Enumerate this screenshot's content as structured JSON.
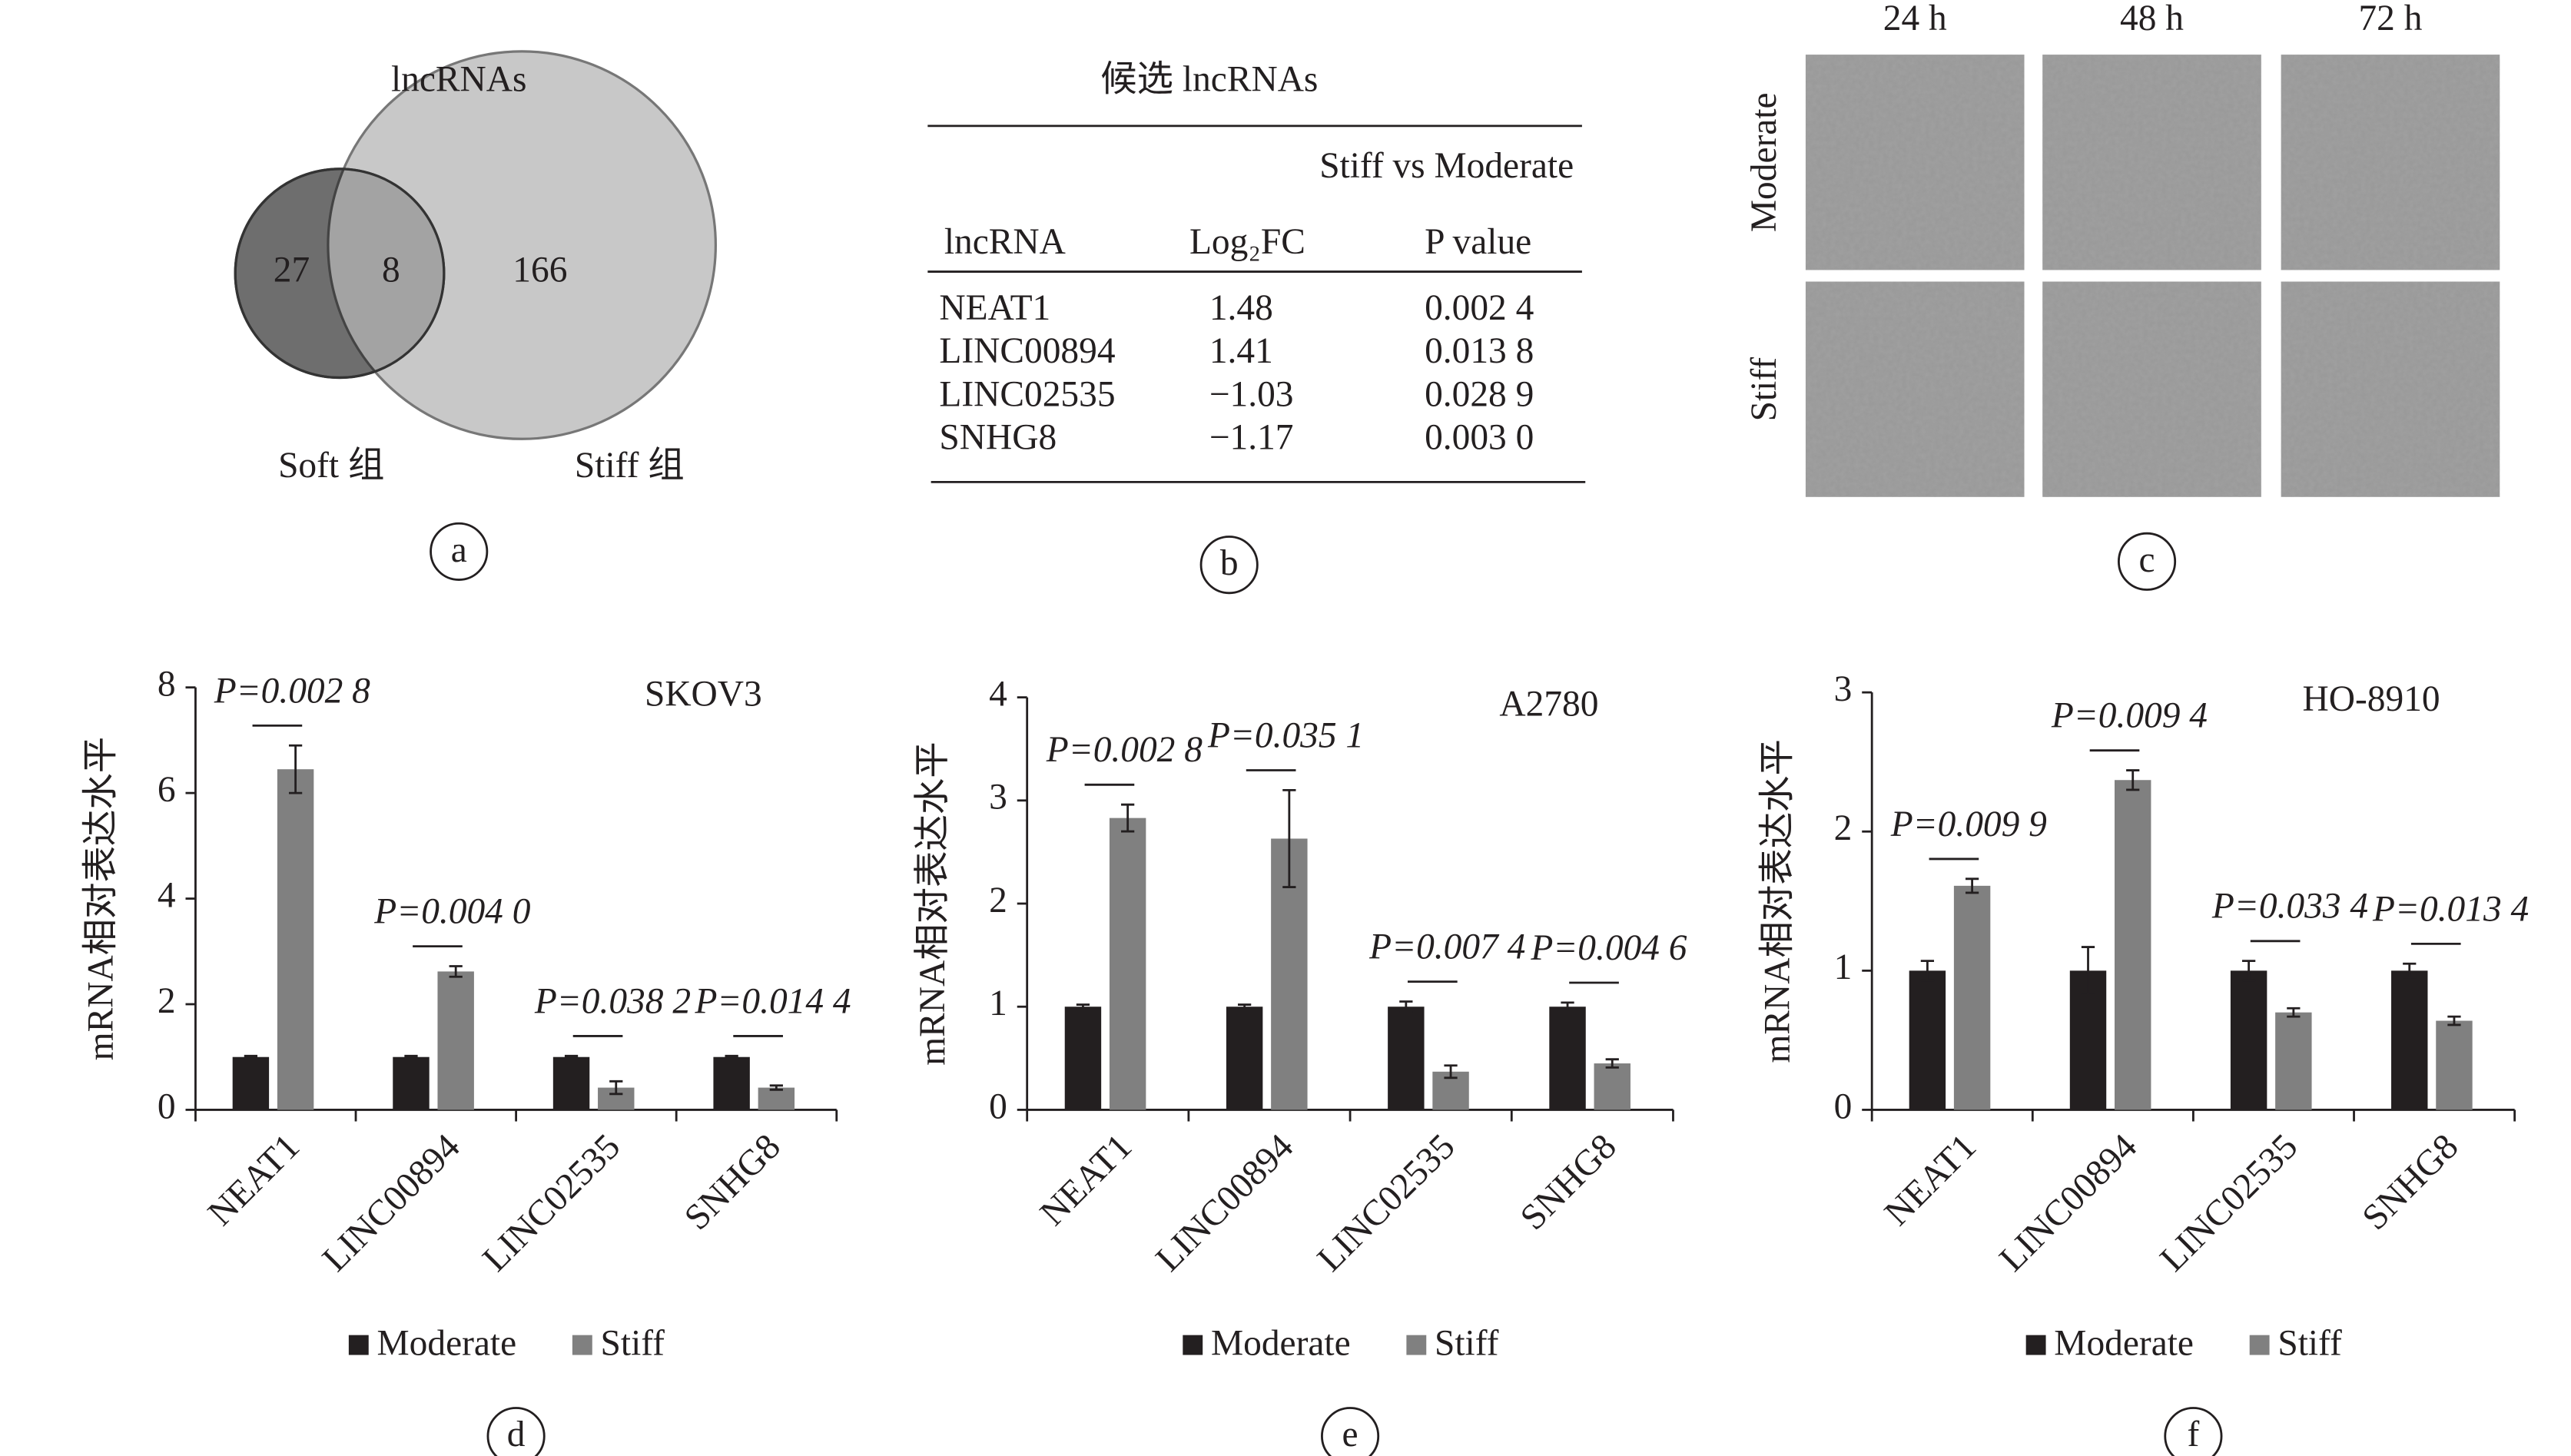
{
  "venn": {
    "title": "lncRNAs",
    "sets": [
      {
        "label": "Soft 组",
        "value": 27
      },
      {
        "label": "Stiff 组",
        "value": 166
      }
    ],
    "overlap": 8,
    "panel": "a"
  },
  "table": {
    "title": "候选 lncRNAs",
    "group_header": "Stiff vs Moderate",
    "columns": [
      "lncRNA",
      "Log₂FC",
      "P value"
    ],
    "rows": [
      [
        "NEAT1",
        "1.48",
        "0.002 4"
      ],
      [
        "LINC00894",
        "1.41",
        "0.013 8"
      ],
      [
        "LINC02535",
        "−1.03",
        "0.028 9"
      ],
      [
        "SNHG8",
        "−1.17",
        "0.003 0"
      ]
    ],
    "panel": "b"
  },
  "images": {
    "columns": [
      "24 h",
      "48 h",
      "72 h"
    ],
    "rows": [
      "Moderate",
      "Stiff"
    ],
    "panel": "c"
  },
  "chart_data": [
    {
      "type": "bar",
      "title": "SKOV3",
      "ylabel": "mRNA相对表达水平",
      "categories": [
        "NEAT1",
        "LINC00894",
        "LINC02535",
        "SNHG8"
      ],
      "series": [
        {
          "name": "Moderate",
          "color": "#231f20",
          "values": [
            1,
            1,
            1,
            1
          ],
          "errors": [
            0.02,
            0.02,
            0.02,
            0.02
          ]
        },
        {
          "name": "Stiff",
          "color": "#808080",
          "values": [
            6.45,
            2.62,
            0.42,
            0.42
          ],
          "errors": [
            0.45,
            0.1,
            0.12,
            0.04
          ]
        }
      ],
      "ylim": [
        0,
        8
      ],
      "yticks": [
        0,
        2,
        4,
        6,
        8
      ],
      "annotations": [
        "P=0.002 8",
        "P=0.004 0",
        "P=0.038 2",
        "P=0.014 4"
      ],
      "panel": "d"
    },
    {
      "type": "bar",
      "title": "A2780",
      "ylabel": "mRNA相对表达水平",
      "categories": [
        "NEAT1",
        "LINC00894",
        "LINC02535",
        "SNHG8"
      ],
      "series": [
        {
          "name": "Moderate",
          "color": "#231f20",
          "values": [
            1,
            1,
            1,
            1
          ],
          "errors": [
            0.02,
            0.02,
            0.05,
            0.04
          ]
        },
        {
          "name": "Stiff",
          "color": "#808080",
          "values": [
            2.83,
            2.63,
            0.37,
            0.45
          ],
          "errors": [
            0.13,
            0.47,
            0.06,
            0.04
          ]
        }
      ],
      "ylim": [
        0,
        4
      ],
      "yticks": [
        0,
        1,
        2,
        3,
        4
      ],
      "annotations": [
        "P=0.002 8",
        "P=0.035 1",
        "P=0.007 4",
        "P=0.004 6"
      ],
      "panel": "e"
    },
    {
      "type": "bar",
      "title": "HO-8910",
      "ylabel": "mRNA相对表达水平",
      "categories": [
        "NEAT1",
        "LINC00894",
        "LINC02535",
        "SNHG8"
      ],
      "series": [
        {
          "name": "Moderate",
          "color": "#231f20",
          "values": [
            1,
            1,
            1,
            1
          ],
          "errors": [
            0.07,
            0.17,
            0.07,
            0.05
          ]
        },
        {
          "name": "Stiff",
          "color": "#808080",
          "values": [
            1.61,
            2.37,
            0.7,
            0.64
          ],
          "errors": [
            0.05,
            0.07,
            0.03,
            0.03
          ]
        }
      ],
      "ylim": [
        0,
        3
      ],
      "yticks": [
        0,
        1,
        2,
        3
      ],
      "annotations": [
        "P=0.009 9",
        "P=0.009 4",
        "P=0.033 4",
        "P=0.013 4"
      ],
      "panel": "f"
    }
  ]
}
